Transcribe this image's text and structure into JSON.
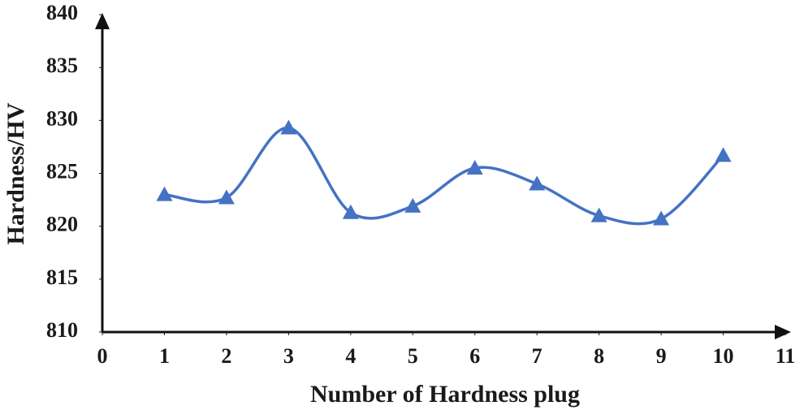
{
  "chart_data": {
    "type": "line",
    "smooth": true,
    "marker": "triangle",
    "x": [
      1,
      2,
      3,
      4,
      5,
      6,
      7,
      8,
      9,
      10
    ],
    "values": [
      823.0,
      822.7,
      829.3,
      821.3,
      821.9,
      825.5,
      824.0,
      821.0,
      820.7,
      826.7
    ],
    "color": "#4472c4",
    "x_label": "Number of Hardness plug",
    "y_label": "Hardness/HV",
    "xlim": [
      0,
      11
    ],
    "xticks": [
      0,
      1,
      2,
      3,
      4,
      5,
      6,
      7,
      8,
      9,
      10,
      11
    ],
    "ylim": [
      810,
      840
    ],
    "yticks": [
      810,
      815,
      820,
      825,
      830,
      835,
      840
    ],
    "grid": false
  }
}
